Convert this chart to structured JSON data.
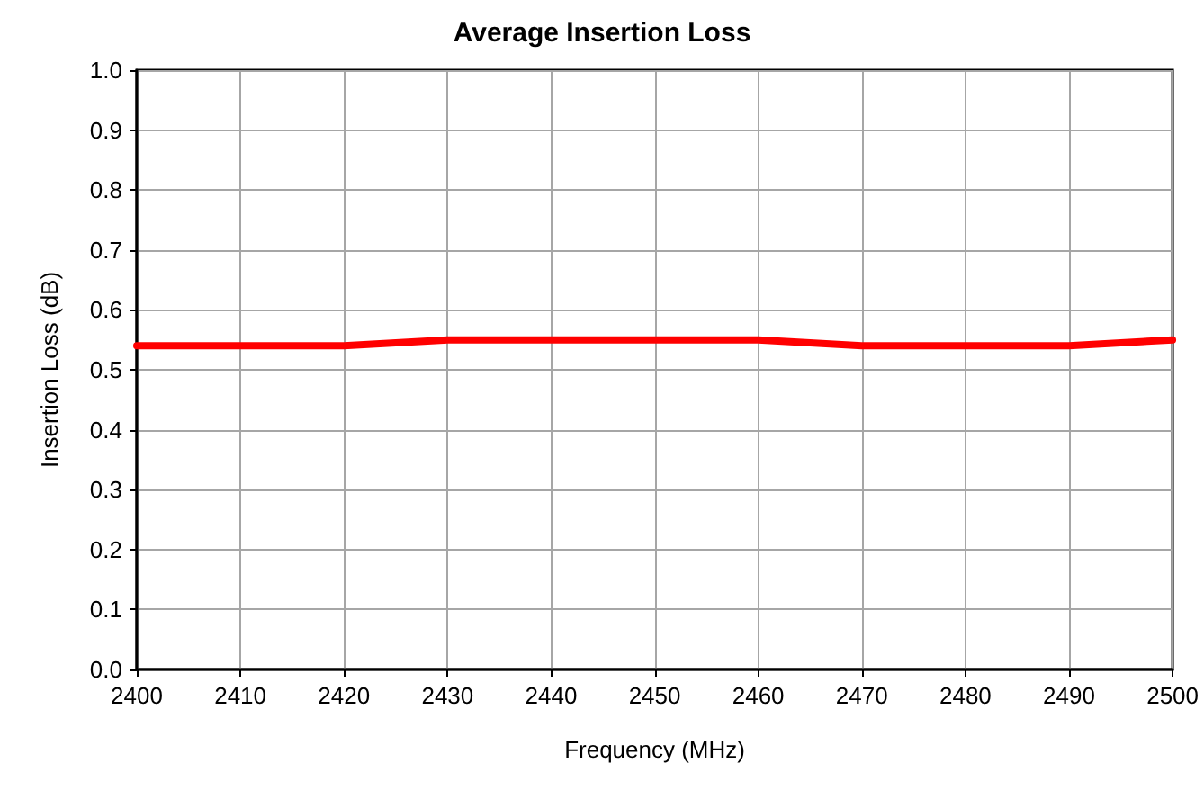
{
  "chart_data": {
    "type": "line",
    "title": "Average Insertion Loss",
    "xlabel": "Frequency (MHz)",
    "ylabel": "Insertion Loss (dB)",
    "x": [
      2400,
      2410,
      2420,
      2430,
      2440,
      2450,
      2460,
      2470,
      2480,
      2490,
      2500
    ],
    "series": [
      {
        "color": "#ff0000",
        "values": [
          0.54,
          0.54,
          0.54,
          0.55,
          0.55,
          0.55,
          0.55,
          0.54,
          0.54,
          0.54,
          0.55
        ]
      }
    ],
    "xlim": [
      2400,
      2500
    ],
    "xticks": [
      2400,
      2410,
      2420,
      2430,
      2440,
      2450,
      2460,
      2470,
      2480,
      2490,
      2500
    ],
    "ylim": [
      0,
      1
    ],
    "yticks": [
      "0.0",
      0.1,
      0.2,
      0.3,
      0.4,
      0.5,
      0.6,
      0.7,
      0.8,
      0.9,
      "1.0"
    ],
    "grid": true,
    "marker": "none",
    "line_style": "solid"
  }
}
